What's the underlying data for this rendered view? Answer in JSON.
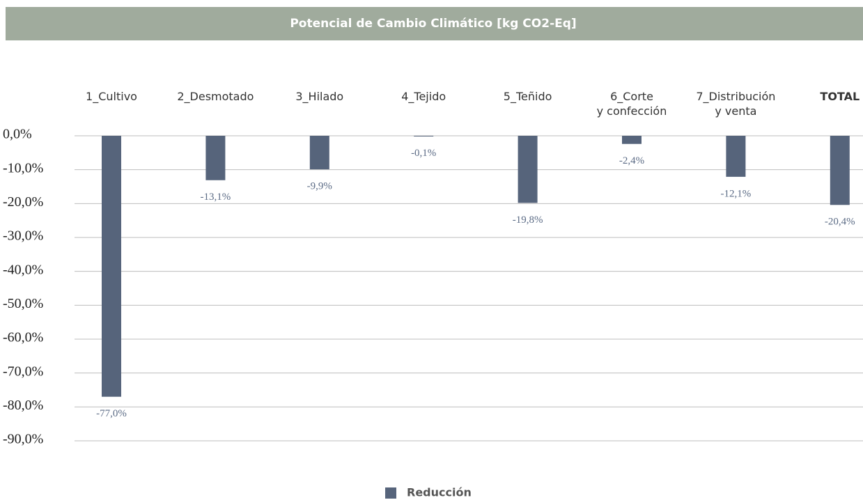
{
  "chart_data": {
    "type": "bar",
    "title": "Potencial de Cambio Climático [kg CO2-Eq]",
    "categories": [
      "1_Cultivo",
      "2_Desmotado",
      "3_Hilado",
      "4_Tejido",
      "5_Teñido",
      "6_Corte\ny confección",
      "7_Distribución\ny venta",
      "TOTAL"
    ],
    "series": [
      {
        "name": "Reducción",
        "color": "#56647b",
        "values": [
          -77.0,
          -13.1,
          -9.9,
          -0.1,
          -19.8,
          -2.4,
          -12.1,
          -20.4
        ],
        "value_labels": [
          "-77,0%",
          "-13,1%",
          "-9,9%",
          "-0,1%",
          "-19,8%",
          "-2,4%",
          "-12,1%",
          "-20,4%"
        ]
      }
    ],
    "ylim": [
      -90,
      0
    ],
    "yticks": [
      {
        "value": 0,
        "label": "0,0%"
      },
      {
        "value": -10,
        "label": "-10,0%"
      },
      {
        "value": -20,
        "label": "-20,0%"
      },
      {
        "value": -30,
        "label": "-30,0%"
      },
      {
        "value": -40,
        "label": "-40,0%"
      },
      {
        "value": -50,
        "label": "-50,0%"
      },
      {
        "value": -60,
        "label": "-60,0%"
      },
      {
        "value": -70,
        "label": "-70,0%"
      },
      {
        "value": -80,
        "label": "-80,0%"
      },
      {
        "value": -90,
        "label": "-90,0%"
      }
    ],
    "grid": true,
    "legend": "bottom"
  }
}
